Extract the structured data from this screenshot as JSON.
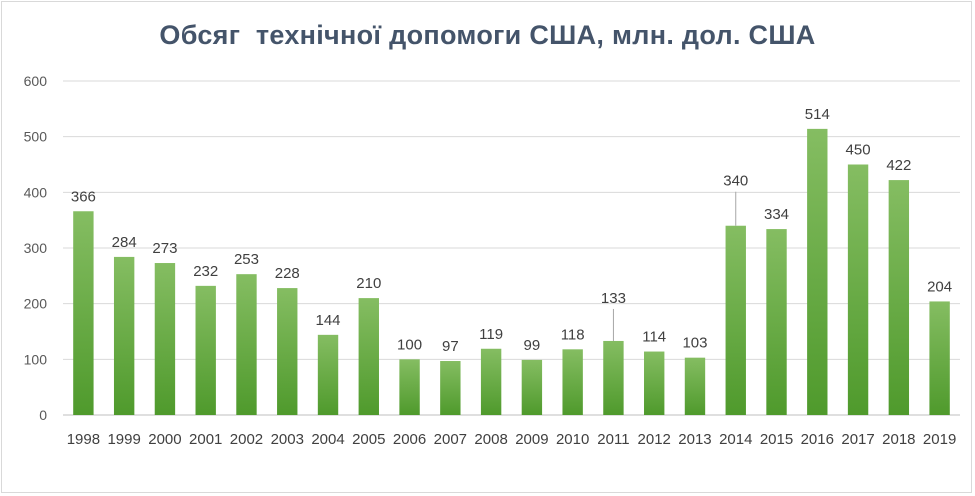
{
  "chart_data": {
    "type": "bar",
    "title": "Обсяг  технічної допомоги США, млн. дол. США",
    "xlabel": "",
    "ylabel": "",
    "ylim": [
      0,
      600
    ],
    "yticks": [
      0,
      100,
      200,
      300,
      400,
      500,
      600
    ],
    "grid": true,
    "legend": "none",
    "bar_color": "#6aa945",
    "categories": [
      "1998",
      "1999",
      "2000",
      "2001",
      "2002",
      "2003",
      "2004",
      "2005",
      "2006",
      "2007",
      "2008",
      "2009",
      "2010",
      "2011",
      "2012",
      "2013",
      "2014",
      "2015",
      "2016",
      "2017",
      "2018",
      "2019"
    ],
    "values": [
      366,
      284,
      273,
      232,
      253,
      228,
      144,
      210,
      100,
      97,
      119,
      99,
      118,
      133,
      114,
      103,
      340,
      334,
      514,
      450,
      422,
      204
    ]
  }
}
